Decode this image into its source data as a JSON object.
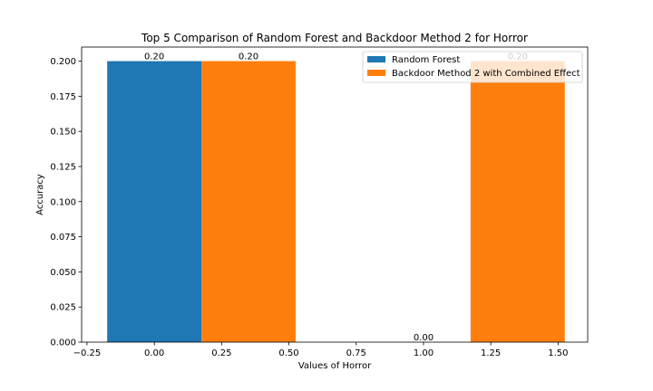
{
  "chart_data": {
    "type": "bar",
    "title": "Top 5 Comparison of Random Forest and Backdoor Method 2 for Horror",
    "xlabel": "Values of Horror",
    "ylabel": "Accuracy",
    "xlim": [
      -0.27,
      1.61
    ],
    "ylim": [
      0,
      0.21
    ],
    "xticks": [
      "−0.25",
      "0.00",
      "0.25",
      "0.50",
      "0.75",
      "1.00",
      "1.25",
      "1.50"
    ],
    "yticks": [
      "0.000",
      "0.025",
      "0.050",
      "0.075",
      "0.100",
      "0.125",
      "0.150",
      "0.175",
      "0.200"
    ],
    "grid": false,
    "legend_position": "upper right",
    "bar_width": 0.35,
    "series": [
      {
        "name": "Random Forest",
        "color": "#1f77b4",
        "x": [
          0.0,
          1.0
        ],
        "values": [
          0.2,
          0.0
        ],
        "labels": [
          "0.20",
          "0.00"
        ]
      },
      {
        "name": "Backdoor Method 2 with Combined Effect",
        "color": "#ff7f0e",
        "x": [
          0.35,
          1.35
        ],
        "values": [
          0.2,
          0.2
        ],
        "labels": [
          "0.20",
          "0.20"
        ]
      }
    ]
  }
}
